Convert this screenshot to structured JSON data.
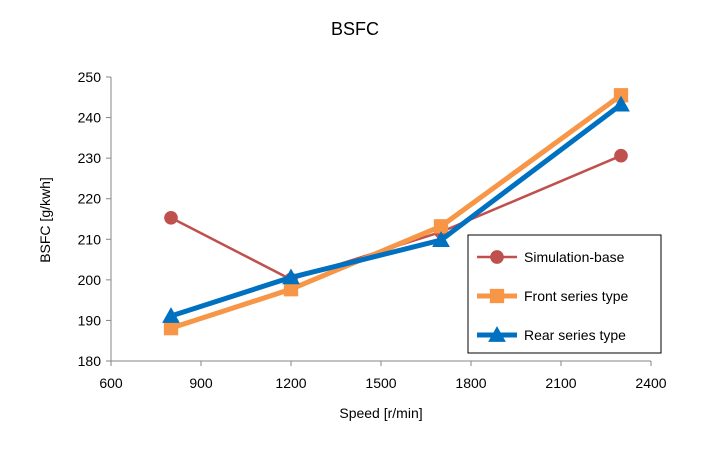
{
  "chart_data": {
    "type": "line",
    "title": "BSFC",
    "xlabel": "Speed [r/min]",
    "ylabel": "BSFC [g/kwh]",
    "xlim": [
      600,
      2400
    ],
    "ylim": [
      180,
      250
    ],
    "xticks": [
      600,
      900,
      1200,
      1500,
      1800,
      2100,
      2400
    ],
    "yticks": [
      180,
      190,
      200,
      210,
      220,
      230,
      240,
      250
    ],
    "grid": false,
    "legend_position": "right",
    "series": [
      {
        "name": "Simulation-base",
        "color": "#c0504d",
        "marker": "circle",
        "x": [
          800,
          1200,
          1700,
          2300
        ],
        "y": [
          215.3,
          200.1,
          211.8,
          230.6
        ]
      },
      {
        "name": "Front series type",
        "color": "#f79646",
        "marker": "square",
        "x": [
          800,
          1200,
          1700,
          2300
        ],
        "y": [
          188.1,
          197.7,
          213.2,
          245.5
        ]
      },
      {
        "name": "Rear series type",
        "color": "#0070c0",
        "marker": "triangle",
        "x": [
          800,
          1200,
          1700,
          2300
        ],
        "y": [
          191.1,
          200.6,
          209.8,
          243.2
        ]
      }
    ]
  }
}
